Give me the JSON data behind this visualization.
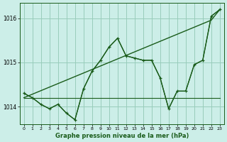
{
  "title": "Graphe pression niveau de la mer (hPa)",
  "bg_color": "#cceee8",
  "grid_color": "#99ccbb",
  "line_color": "#1a5c1a",
  "xlim": [
    -0.5,
    23.5
  ],
  "ylim": [
    1013.6,
    1016.35
  ],
  "yticks": [
    1014,
    1015,
    1016
  ],
  "xticks": [
    0,
    1,
    2,
    3,
    4,
    5,
    6,
    7,
    8,
    9,
    10,
    11,
    12,
    13,
    14,
    15,
    16,
    17,
    18,
    19,
    20,
    21,
    22,
    23
  ],
  "line1_x": [
    0,
    1,
    2,
    3,
    4,
    5,
    6,
    7,
    8,
    9,
    10,
    11,
    12,
    13,
    14,
    15,
    16,
    17,
    18,
    19,
    20,
    21,
    22,
    23
  ],
  "line1_y": [
    1014.2,
    1014.28,
    1014.36,
    1014.44,
    1014.52,
    1014.6,
    1014.68,
    1014.76,
    1014.84,
    1014.92,
    1015.0,
    1015.08,
    1015.16,
    1015.24,
    1015.32,
    1015.4,
    1015.48,
    1015.56,
    1015.64,
    1015.72,
    1015.8,
    1015.88,
    1015.96,
    1016.2
  ],
  "line2_x": [
    0,
    1,
    2,
    3,
    4,
    5,
    6,
    7,
    8,
    9,
    10,
    11,
    12,
    13,
    14,
    15,
    16,
    17,
    18,
    19,
    20,
    21,
    22,
    23
  ],
  "line2_y": [
    1014.2,
    1014.2,
    1014.2,
    1014.2,
    1014.2,
    1014.2,
    1014.2,
    1014.2,
    1014.2,
    1014.2,
    1014.2,
    1014.2,
    1014.2,
    1014.2,
    1014.2,
    1014.2,
    1014.2,
    1014.2,
    1014.2,
    1014.2,
    1014.2,
    1014.2,
    1014.2,
    1014.2
  ],
  "line3_x": [
    0,
    1,
    2,
    3,
    4,
    5,
    6,
    7,
    8,
    9,
    10,
    11,
    12,
    13,
    14,
    15,
    16,
    17,
    18,
    19,
    20,
    21,
    22,
    23
  ],
  "line3_y": [
    1014.3,
    1014.2,
    1014.05,
    1013.95,
    1014.05,
    1013.85,
    1013.7,
    1014.4,
    1014.8,
    1015.05,
    1015.35,
    1015.55,
    1015.15,
    1015.1,
    1015.05,
    1015.05,
    1014.65,
    1013.95,
    1014.35,
    1014.35,
    1014.95,
    1015.05,
    1016.05,
    1016.2
  ],
  "line4_x": [
    0,
    1,
    2,
    3,
    4,
    5,
    6,
    7,
    8,
    9,
    10,
    11,
    12,
    13,
    14,
    15,
    16,
    17,
    18,
    19,
    20,
    21,
    22,
    23
  ],
  "line4_y": [
    1014.3,
    1014.2,
    1014.05,
    1013.95,
    1014.05,
    1013.85,
    1013.7,
    1014.4,
    1014.8,
    1015.05,
    1015.35,
    1015.55,
    1015.15,
    1015.1,
    1015.05,
    1015.05,
    1014.65,
    1013.95,
    1014.35,
    1014.35,
    1014.95,
    1015.05,
    1016.05,
    1016.2
  ]
}
